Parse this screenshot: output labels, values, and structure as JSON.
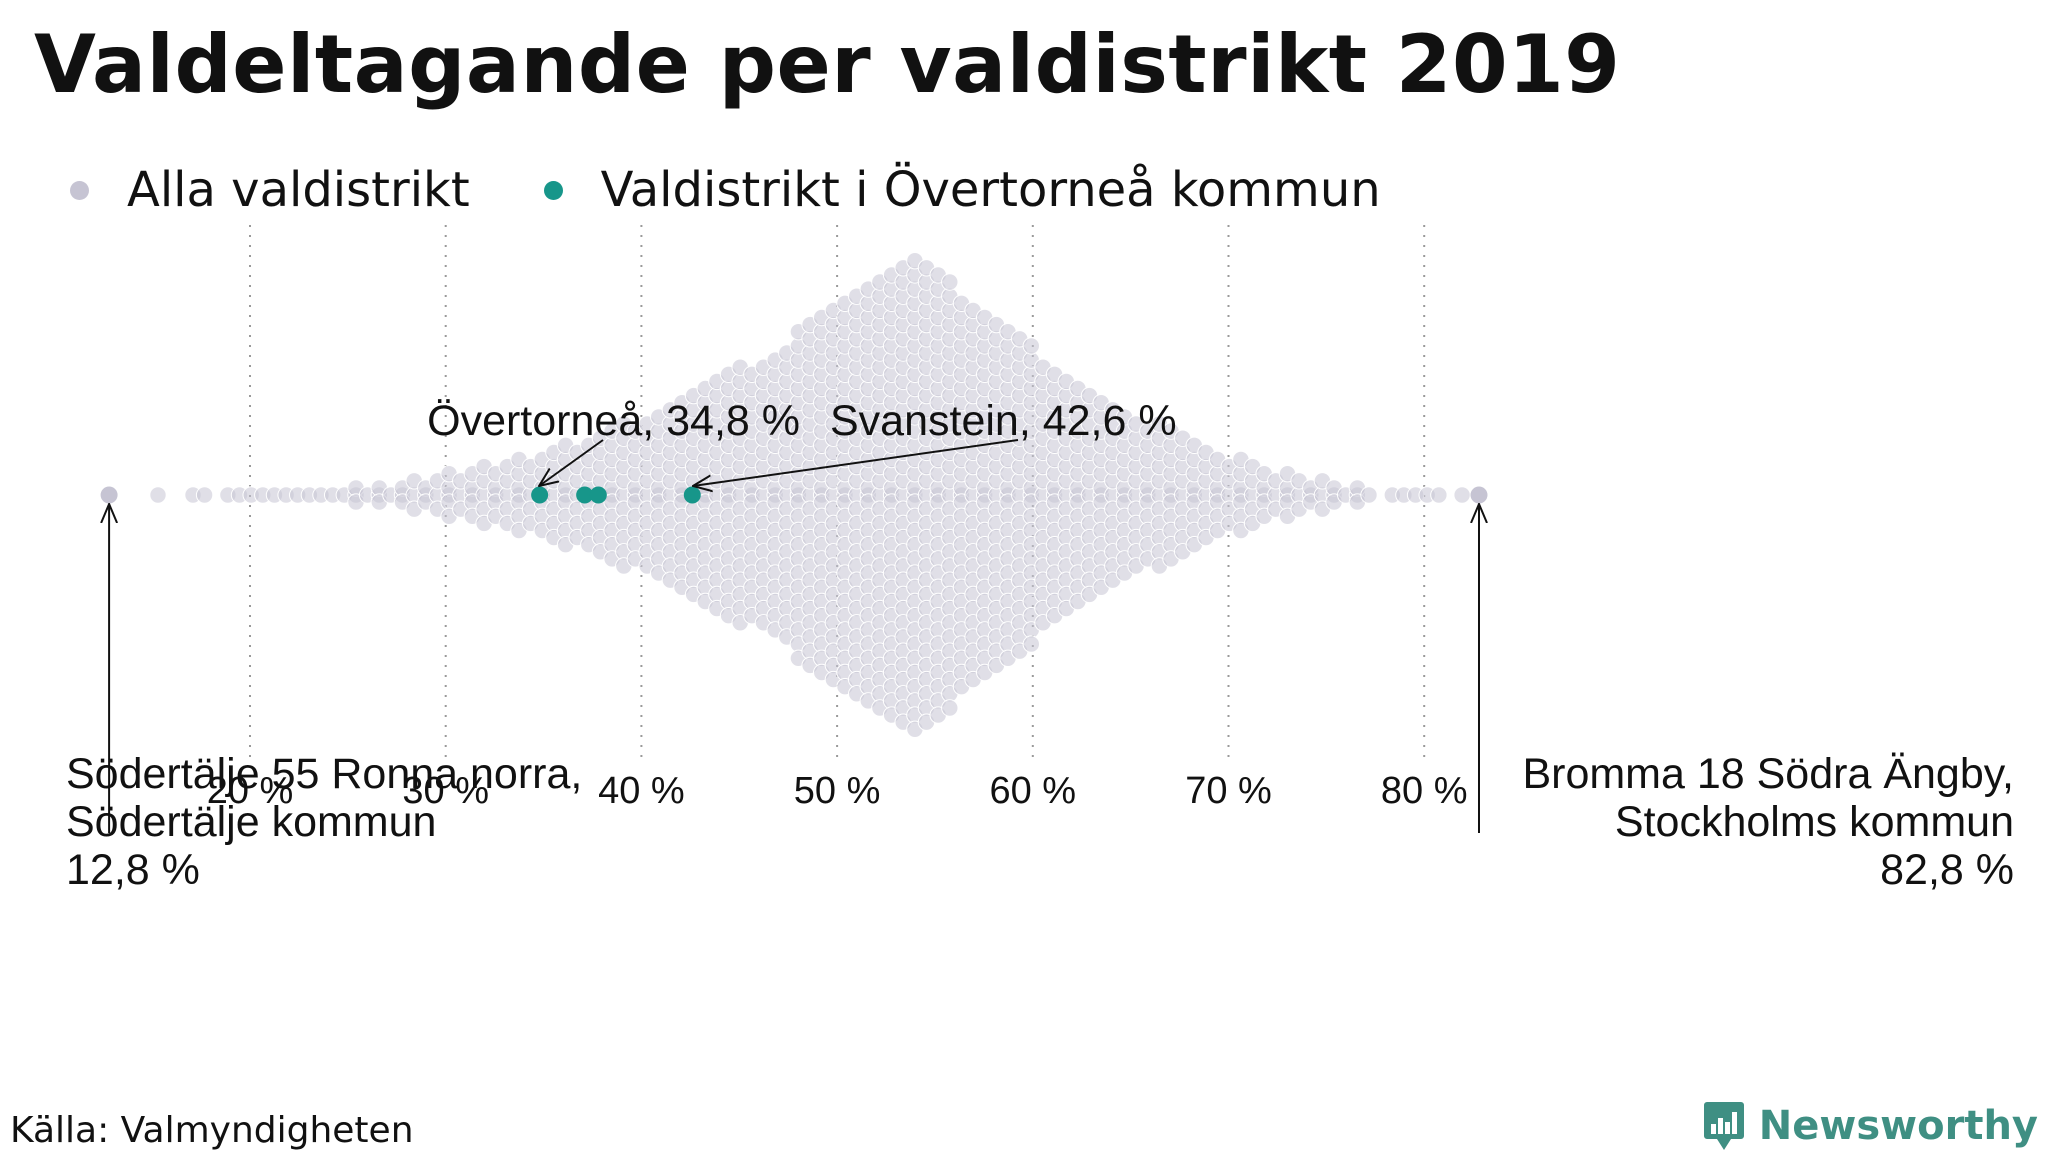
{
  "title": "Valdeltagande per valdistrikt 2019",
  "legend": [
    {
      "label": "Alla valdistrikt",
      "color": "#c6c4d3"
    },
    {
      "label": "Valdistrikt i Övertorneå kommun",
      "color": "#17968a"
    }
  ],
  "source": "Källa: Valmyndigheten",
  "brand": "Newsworthy",
  "chart_data": {
    "type": "scatter",
    "subtype": "beeswarm",
    "xlim": [
      12,
      84
    ],
    "x_ticks": [
      20,
      30,
      40,
      50,
      60,
      70,
      80
    ],
    "x_tick_labels": [
      "20 %",
      "30 %",
      "40 %",
      "50 %",
      "60 %",
      "70 %",
      "80 %"
    ],
    "grid": "vertical-dotted",
    "colors": {
      "all": "#c6c4d3",
      "highlight": "#17968a"
    },
    "highlighted_points": [
      34.8,
      37.1,
      37.8,
      42.6
    ],
    "extreme_points": [
      12.8,
      82.8
    ],
    "distribution": {
      "min": 12.8,
      "max": 82.8,
      "peak": 53.8
    },
    "annotations": [
      {
        "id": "overtornea",
        "lines": [
          "Övertorneå, 34,8 %"
        ],
        "x": 34.8
      },
      {
        "id": "svanstein",
        "lines": [
          "Svanstein, 42,6 %"
        ],
        "x": 42.6
      },
      {
        "id": "min",
        "lines": [
          "Södertälje 55 Ronna norra,",
          "Södertälje kommun",
          "12,8 %"
        ],
        "x": 12.8
      },
      {
        "id": "max",
        "lines": [
          "Bromma 18 Södra Ängby,",
          "Stockholms kommun",
          "82,8 %"
        ],
        "x": 82.8
      }
    ]
  }
}
